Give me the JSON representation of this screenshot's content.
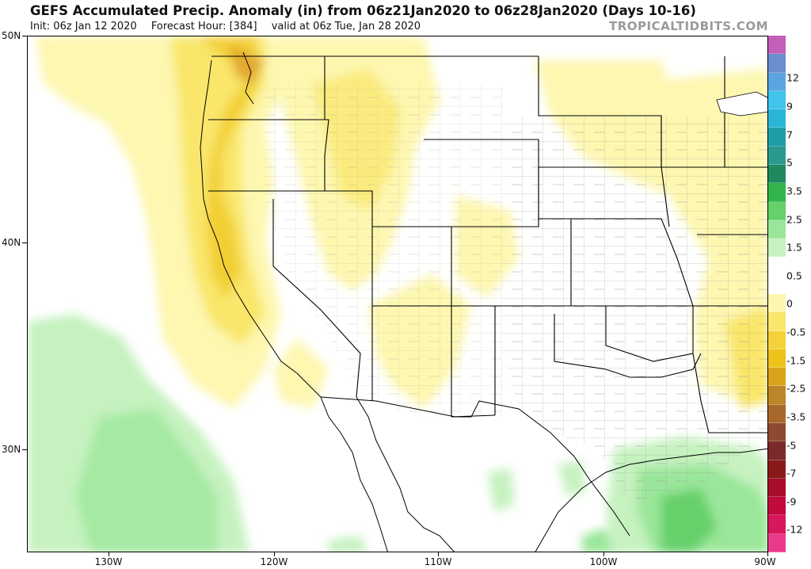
{
  "header": {
    "title": "GEFS Accumulated Precip. Anomaly (in) from 06z21Jan2020 to 06z28Jan2020 (Days 10-16)",
    "init": "Init: 06z Jan 12 2020",
    "forecast_hour": "Forecast Hour: [384]",
    "valid": "valid at 06z Tue, Jan 28 2020",
    "brand": "TROPICALTIDBITS.COM"
  },
  "map": {
    "region": "Western and Central United States",
    "lat_labels": [
      "50N",
      "40N",
      "30N"
    ],
    "lon_labels": [
      "130W",
      "120W",
      "110W",
      "100W",
      "90W"
    ]
  },
  "colorbar": {
    "labels": [
      "12",
      "9",
      "7",
      "5",
      "3.5",
      "2.5",
      "1.5",
      "0.5",
      "0",
      "-0.5",
      "-1.5",
      "-2.5",
      "-3.5",
      "-5",
      "-7",
      "-9",
      "-12"
    ],
    "colors": [
      "#c35fb8",
      "#6a8ed0",
      "#5aa4e0",
      "#40c4ec",
      "#29b5d8",
      "#1f9ea6",
      "#2b9a8e",
      "#1e8a5e",
      "#32b44c",
      "#66d06a",
      "#9ae69a",
      "#c6f2c0",
      "#ffffff",
      "#ffffff",
      "#fdf6ae",
      "#f9e66a",
      "#f5d23a",
      "#edc21b",
      "#d9a41c",
      "#bc8628",
      "#a8682c",
      "#8e4a30",
      "#7a2a2a",
      "#8a1818",
      "#a80c2a",
      "#c20a3c",
      "#d8175c",
      "#ea3a8c"
    ]
  },
  "colors": {
    "dry_light": "#fdf7b0",
    "dry_mid": "#f9e66a",
    "dry_strong": "#f2cf34",
    "wet_light": "#c6f2c0",
    "wet_mid": "#9ae69a",
    "wet_strong": "#66d06a"
  }
}
